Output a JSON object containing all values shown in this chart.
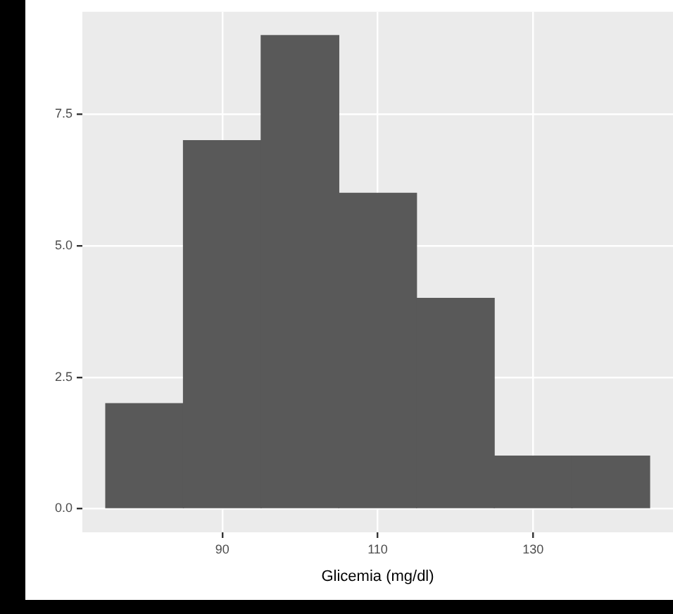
{
  "chart_data": {
    "type": "histogram",
    "xlabel": "Glicemia (mg/dl)",
    "bins": [
      75,
      85,
      95,
      105,
      115,
      125,
      135,
      145
    ],
    "values": [
      2,
      7,
      9,
      6,
      4,
      1,
      1
    ],
    "color": "#595959",
    "xlim": [
      72,
      148
    ],
    "xticks": [
      90,
      110,
      130
    ],
    "ylim": [
      -0.45,
      9.45
    ],
    "yticks": [
      {
        "value": 0,
        "label": "0.0"
      },
      {
        "value": 2.5,
        "label": "2.5"
      },
      {
        "value": 5,
        "label": "5.0"
      },
      {
        "value": 7.5,
        "label": "7.5"
      }
    ],
    "grid": true,
    "legend": false
  }
}
